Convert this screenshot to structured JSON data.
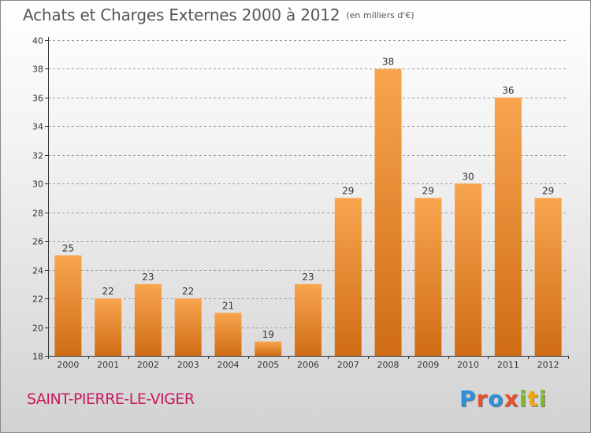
{
  "title": "Achats et Charges Externes 2000 à 2012",
  "unit_note": "(en milliers d'€)",
  "city": "SAINT-PIERRE-LE-VIGER",
  "brand": {
    "letters": [
      "P",
      "r",
      "o",
      "x",
      "i",
      "t",
      "i"
    ],
    "colors": [
      "#2f8fd8",
      "#e8502a",
      "#2f8fd8",
      "#e8502a",
      "#7dbb2e",
      "#f2a614",
      "#7dbb2e"
    ]
  },
  "colors": {
    "bar_top": "#f8a54e",
    "bar_bottom": "#d06c16",
    "grid": "#9a9a9a",
    "axis": "#333333"
  },
  "chart_data": {
    "type": "bar",
    "title": "Achats et Charges Externes 2000 à 2012",
    "subtitle": "(en milliers d'€)",
    "categories": [
      "2000",
      "2001",
      "2002",
      "2003",
      "2004",
      "2005",
      "2006",
      "2007",
      "2008",
      "2009",
      "2010",
      "2011",
      "2012"
    ],
    "values": [
      25,
      22,
      23,
      22,
      21,
      19,
      23,
      29,
      38,
      29,
      30,
      36,
      29
    ],
    "ylim": [
      18,
      40
    ],
    "yticks": [
      18,
      20,
      22,
      24,
      26,
      28,
      30,
      32,
      34,
      36,
      38,
      40
    ],
    "grid": "horizontal, dashed",
    "legend": "none"
  }
}
